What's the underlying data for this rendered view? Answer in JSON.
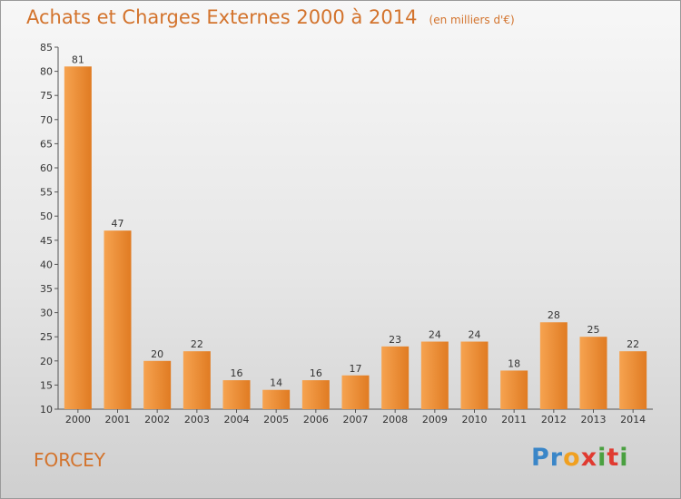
{
  "header": {
    "title": "Achats et Charges Externes 2000 à 2014",
    "unit": "(en milliers d'€)"
  },
  "footer": {
    "commune": "FORCEY",
    "logo_letters": [
      {
        "ch": "P",
        "color": "#3a86c8"
      },
      {
        "ch": "r",
        "color": "#3a86c8"
      },
      {
        "ch": "o",
        "color": "#f0a020"
      },
      {
        "ch": "x",
        "color": "#e03a30"
      },
      {
        "ch": "i",
        "color": "#4aa040"
      },
      {
        "ch": "t",
        "color": "#e03a30"
      },
      {
        "ch": "i",
        "color": "#4aa040"
      }
    ]
  },
  "chart_data": {
    "type": "bar",
    "title": "Achats et Charges Externes 2000 à 2014",
    "subtitle": "(en milliers d'€)",
    "xlabel": "",
    "ylabel": "",
    "categories": [
      "2000",
      "2001",
      "2002",
      "2003",
      "2004",
      "2005",
      "2006",
      "2007",
      "2008",
      "2009",
      "2010",
      "2011",
      "2012",
      "2013",
      "2014"
    ],
    "values": [
      81,
      47,
      20,
      22,
      16,
      14,
      16,
      17,
      23,
      24,
      24,
      18,
      28,
      25,
      22
    ],
    "ylim": [
      10,
      85
    ],
    "yticks": [
      10,
      15,
      20,
      25,
      30,
      35,
      40,
      45,
      50,
      55,
      60,
      65,
      70,
      75,
      80,
      85
    ],
    "grid": false,
    "bar_color": "#f09a44",
    "text_color": "#d3732c"
  }
}
